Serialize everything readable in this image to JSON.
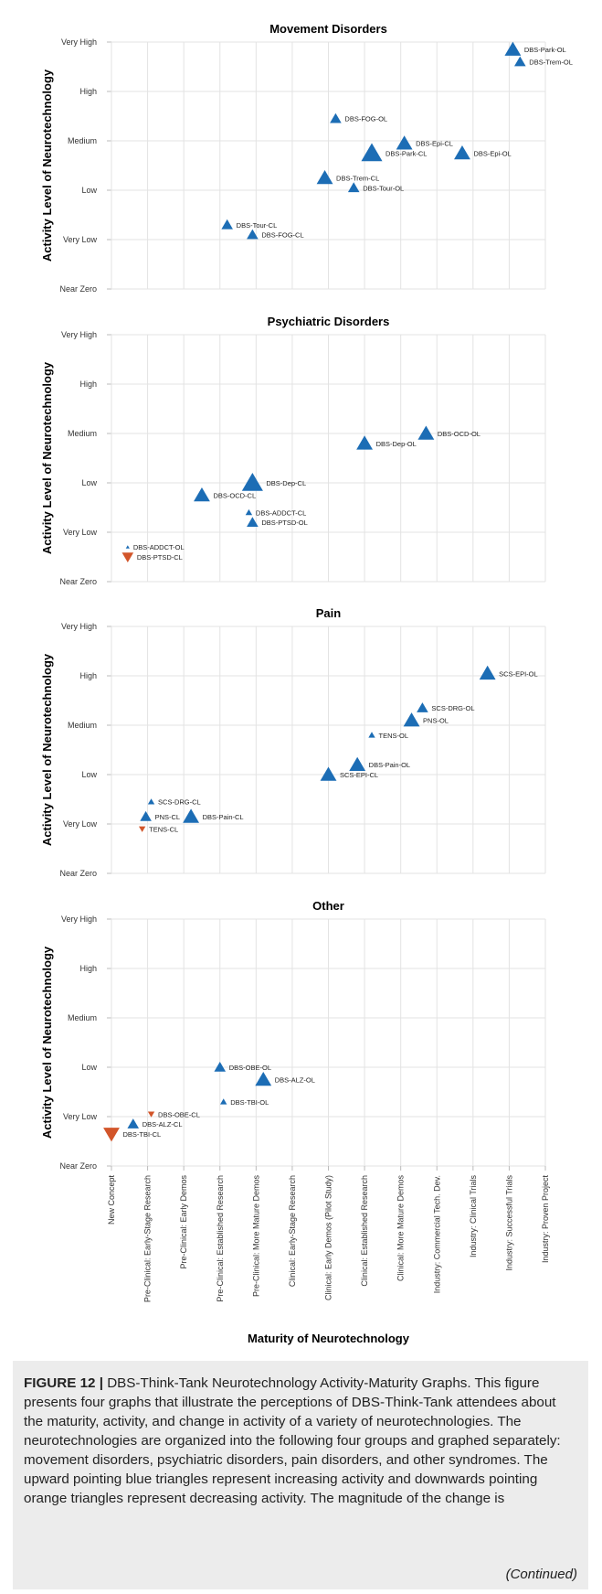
{
  "chart_data": {
    "type": "scatter",
    "xlabel": "Maturity of Neurotechnology",
    "x_categories": [
      "New Concept",
      "Pre-Clinical: Early-Stage Research",
      "Pre-Clinical: Early Demos",
      "Pre-Clinical: Established Research",
      "Pre-Clinical: More Mature Demos",
      "Clinical: Early-Stage Research",
      "Clinical: Early Demos (Pilot Study)",
      "Clinical: Established Research",
      "Clinical: More Mature Demos",
      "Industry: Commercial Tech. Dev.",
      "Industry: Clinical Trials",
      "Industry: Successful Trials",
      "Industry: Proven Project"
    ],
    "y_categories": [
      "Near Zero",
      "Very Low",
      "Low",
      "Medium",
      "High",
      "Very High"
    ],
    "ylabel": "Activity Level of Neurotechnology",
    "xlim": [
      0,
      12
    ],
    "ylim": [
      0,
      5
    ],
    "legend": "none",
    "grid": true,
    "panels": [
      {
        "title": "Movement Disorders",
        "points": [
          {
            "label": "DBS-Park-OL",
            "x": 11.1,
            "y": 4.85,
            "dir": "up",
            "size": 3
          },
          {
            "label": "DBS-Trem-OL",
            "x": 11.3,
            "y": 4.6,
            "dir": "up",
            "size": 2
          },
          {
            "label": "DBS-FOG-OL",
            "x": 6.2,
            "y": 3.45,
            "dir": "up",
            "size": 2
          },
          {
            "label": "DBS-Epi-CL",
            "x": 8.1,
            "y": 2.95,
            "dir": "up",
            "size": 3
          },
          {
            "label": "DBS-Park-CL",
            "x": 7.2,
            "y": 2.75,
            "dir": "up",
            "size": 4
          },
          {
            "label": "DBS-Epi-OL",
            "x": 9.7,
            "y": 2.75,
            "dir": "up",
            "size": 3
          },
          {
            "label": "DBS-Trem-CL",
            "x": 5.9,
            "y": 2.25,
            "dir": "up",
            "size": 3
          },
          {
            "label": "DBS-Tour-OL",
            "x": 6.7,
            "y": 2.05,
            "dir": "up",
            "size": 2
          },
          {
            "label": "DBS-Tour-CL",
            "x": 3.2,
            "y": 1.3,
            "dir": "up",
            "size": 2
          },
          {
            "label": "DBS-FOG-CL",
            "x": 3.9,
            "y": 1.1,
            "dir": "up",
            "size": 2
          }
        ]
      },
      {
        "title": "Psychiatric Disorders",
        "points": [
          {
            "label": "DBS-OCD-OL",
            "x": 8.7,
            "y": 3.0,
            "dir": "up",
            "size": 3
          },
          {
            "label": "DBS-Dep-OL",
            "x": 7.0,
            "y": 2.8,
            "dir": "up",
            "size": 3
          },
          {
            "label": "DBS-Dep-CL",
            "x": 3.9,
            "y": 2.0,
            "dir": "up",
            "size": 4
          },
          {
            "label": "DBS-OCD-CL",
            "x": 2.5,
            "y": 1.75,
            "dir": "up",
            "size": 3
          },
          {
            "label": "DBS-ADDCT-CL",
            "x": 3.8,
            "y": 1.4,
            "dir": "up",
            "size": 1
          },
          {
            "label": "DBS-PTSD-OL",
            "x": 3.9,
            "y": 1.2,
            "dir": "up",
            "size": 2
          },
          {
            "label": "DBS-ADDCT-OL",
            "x": 0.45,
            "y": 0.7,
            "dir": "up",
            "size": 0
          },
          {
            "label": "DBS-PTSD-CL",
            "x": 0.45,
            "y": 0.5,
            "dir": "down",
            "size": 2
          }
        ]
      },
      {
        "title": "Pain",
        "points": [
          {
            "label": "SCS-EPI-OL",
            "x": 10.4,
            "y": 4.05,
            "dir": "up",
            "size": 3
          },
          {
            "label": "SCS-DRG-OL",
            "x": 8.6,
            "y": 3.35,
            "dir": "up",
            "size": 2
          },
          {
            "label": "PNS-OL",
            "x": 8.3,
            "y": 3.1,
            "dir": "up",
            "size": 3
          },
          {
            "label": "TENS-OL",
            "x": 7.2,
            "y": 2.8,
            "dir": "up",
            "size": 1
          },
          {
            "label": "DBS-Pain-OL",
            "x": 6.8,
            "y": 2.2,
            "dir": "up",
            "size": 3
          },
          {
            "label": "SCS-EPI-CL",
            "x": 6.0,
            "y": 2.0,
            "dir": "up",
            "size": 3
          },
          {
            "label": "SCS-DRG-CL",
            "x": 1.1,
            "y": 1.45,
            "dir": "up",
            "size": 1
          },
          {
            "label": "PNS-CL",
            "x": 0.95,
            "y": 1.15,
            "dir": "up",
            "size": 2
          },
          {
            "label": "DBS-Pain-CL",
            "x": 2.2,
            "y": 1.15,
            "dir": "up",
            "size": 3
          },
          {
            "label": "TENS-CL",
            "x": 0.85,
            "y": 0.9,
            "dir": "down",
            "size": 1
          }
        ]
      },
      {
        "title": "Other",
        "points": [
          {
            "label": "DBS-OBE-OL",
            "x": 3.0,
            "y": 2.0,
            "dir": "up",
            "size": 2
          },
          {
            "label": "DBS-ALZ-OL",
            "x": 4.2,
            "y": 1.75,
            "dir": "up",
            "size": 3
          },
          {
            "label": "DBS-TBI-OL",
            "x": 3.1,
            "y": 1.3,
            "dir": "up",
            "size": 1
          },
          {
            "label": "DBS-OBE-CL",
            "x": 1.1,
            "y": 1.05,
            "dir": "down",
            "size": 1
          },
          {
            "label": "DBS-ALZ-CL",
            "x": 0.6,
            "y": 0.85,
            "dir": "up",
            "size": 2
          },
          {
            "label": "DBS-TBI-CL",
            "x": 0.0,
            "y": 0.65,
            "dir": "down",
            "size": 3
          }
        ]
      }
    ]
  },
  "colors": {
    "increase": "#1c6db5",
    "decrease": "#d2552a",
    "grid": "#e3e3e3",
    "caption_bg": "#ececec"
  },
  "caption": {
    "label": "FIGURE 12 |",
    "text": " DBS-Think-Tank Neurotechnology Activity-Maturity Graphs. This figure presents four graphs that illustrate the perceptions of DBS-Think-Tank attendees about the maturity, activity, and change in activity of a variety of neurotechnologies. The neurotechnologies are organized into the following four groups and graphed separately: movement disorders, psychiatric disorders, pain disorders, and other syndromes. The upward pointing blue triangles represent increasing activity and downwards pointing orange triangles represent decreasing activity. The magnitude of the change is",
    "continued": "(Continued)"
  }
}
